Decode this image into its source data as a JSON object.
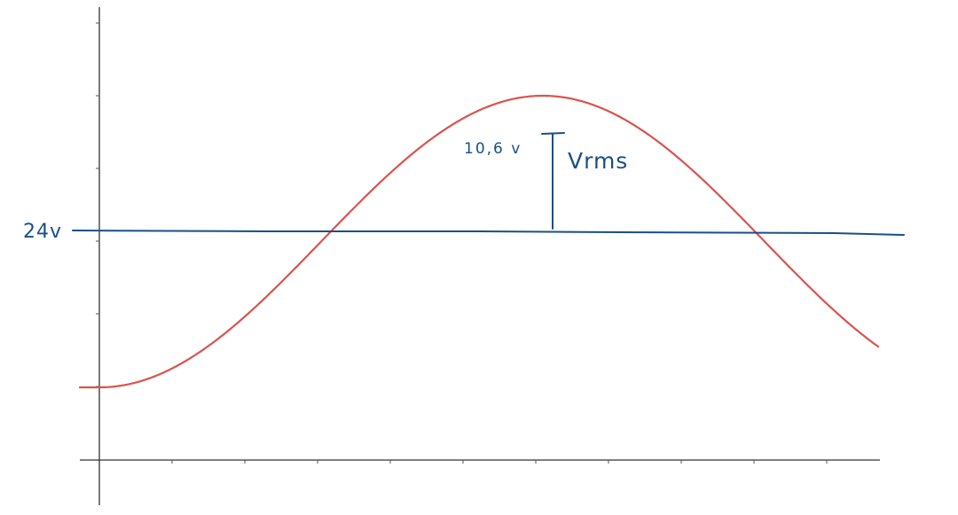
{
  "annotations": {
    "dc_level_label": "24v",
    "amplitude_label": "10,6 v",
    "vrms_label": "Vrms"
  },
  "colors": {
    "sine_wave": "#d9534f",
    "dc_line": "#1a4f86",
    "axes": "#333333"
  }
}
